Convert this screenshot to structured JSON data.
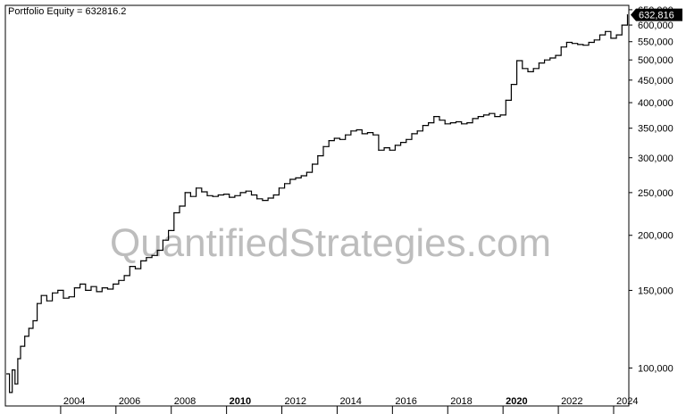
{
  "chart_data": {
    "type": "line",
    "title": "Portfolio Equity = 632816.2",
    "watermark": "QuantifiedStrategies.com",
    "last_value_label": "632,816",
    "y_scale": "log",
    "ylim": [
      82000,
      665000
    ],
    "xlim": [
      2002.0,
      2024.55
    ],
    "x_ticks": [
      {
        "label": "2004",
        "value": 2004,
        "bold": false
      },
      {
        "label": "2006",
        "value": 2006,
        "bold": false
      },
      {
        "label": "2008",
        "value": 2008,
        "bold": false
      },
      {
        "label": "2010",
        "value": 2010,
        "bold": true
      },
      {
        "label": "2012",
        "value": 2012,
        "bold": false
      },
      {
        "label": "2014",
        "value": 2014,
        "bold": false
      },
      {
        "label": "2016",
        "value": 2016,
        "bold": false
      },
      {
        "label": "2018",
        "value": 2018,
        "bold": false
      },
      {
        "label": "2020",
        "value": 2020,
        "bold": true
      },
      {
        "label": "2022",
        "value": 2022,
        "bold": false
      },
      {
        "label": "2024",
        "value": 2024,
        "bold": false
      }
    ],
    "y_ticks": [
      {
        "label": "100,000",
        "value": 100000
      },
      {
        "label": "150,000",
        "value": 150000
      },
      {
        "label": "200,000",
        "value": 200000
      },
      {
        "label": "250,000",
        "value": 250000
      },
      {
        "label": "300,000",
        "value": 300000
      },
      {
        "label": "350,000",
        "value": 350000
      },
      {
        "label": "400,000",
        "value": 400000
      },
      {
        "label": "450,000",
        "value": 450000
      },
      {
        "label": "500,000",
        "value": 500000
      },
      {
        "label": "550,000",
        "value": 550000
      },
      {
        "label": "600,000",
        "value": 600000
      },
      {
        "label": "650,000",
        "value": 650000
      }
    ],
    "colors": {
      "line": "#000000",
      "frame": "#000000",
      "watermark": "#bdbdbd",
      "label_bg": "#000000"
    },
    "series": [
      {
        "x": [
          2002.05,
          2002.15,
          2002.25,
          2002.35,
          2002.45,
          2002.55,
          2002.7,
          2002.85,
          2003.0,
          2003.15,
          2003.3,
          2003.5,
          2003.7,
          2003.9,
          2004.1,
          2004.3,
          2004.5,
          2004.7,
          2004.9,
          2005.1,
          2005.3,
          2005.5,
          2005.7,
          2005.9,
          2006.1,
          2006.3,
          2006.5,
          2006.7,
          2006.9,
          2007.1,
          2007.3,
          2007.5,
          2007.7,
          2007.9,
          2008.1,
          2008.3,
          2008.5,
          2008.7,
          2008.9,
          2009.1,
          2009.3,
          2009.5,
          2009.7,
          2009.9,
          2010.1,
          2010.3,
          2010.5,
          2010.7,
          2010.9,
          2011.1,
          2011.3,
          2011.5,
          2011.7,
          2011.9,
          2012.1,
          2012.3,
          2012.5,
          2012.7,
          2012.9,
          2013.1,
          2013.3,
          2013.5,
          2013.7,
          2013.9,
          2014.1,
          2014.3,
          2014.5,
          2014.7,
          2014.9,
          2015.1,
          2015.3,
          2015.5,
          2015.7,
          2015.9,
          2016.1,
          2016.3,
          2016.5,
          2016.7,
          2016.9,
          2017.1,
          2017.3,
          2017.5,
          2017.7,
          2017.9,
          2018.1,
          2018.3,
          2018.5,
          2018.7,
          2018.9,
          2019.1,
          2019.3,
          2019.5,
          2019.7,
          2019.9,
          2020.1,
          2020.3,
          2020.5,
          2020.7,
          2020.9,
          2021.1,
          2021.3,
          2021.5,
          2021.7,
          2021.9,
          2022.1,
          2022.3,
          2022.5,
          2022.7,
          2022.9,
          2023.1,
          2023.3,
          2023.5,
          2023.7,
          2023.9,
          2024.1,
          2024.3,
          2024.5
        ],
        "values": [
          97000,
          88000,
          99000,
          92000,
          105000,
          112000,
          118000,
          123000,
          128000,
          140000,
          146000,
          142000,
          148000,
          150000,
          144000,
          145000,
          152000,
          155000,
          150000,
          153000,
          149000,
          152000,
          151000,
          155000,
          158000,
          162000,
          170000,
          168000,
          175000,
          178000,
          180000,
          185000,
          195000,
          205000,
          225000,
          233000,
          250000,
          245000,
          256000,
          251000,
          246000,
          245000,
          247000,
          248000,
          244000,
          246000,
          250000,
          252000,
          247000,
          242000,
          240000,
          243000,
          247000,
          256000,
          262000,
          268000,
          270000,
          273000,
          278000,
          290000,
          303000,
          318000,
          328000,
          332000,
          330000,
          338000,
          345000,
          347000,
          340000,
          342000,
          338000,
          312000,
          316000,
          312000,
          320000,
          325000,
          330000,
          340000,
          345000,
          355000,
          360000,
          372000,
          365000,
          358000,
          360000,
          362000,
          358000,
          360000,
          368000,
          372000,
          375000,
          378000,
          372000,
          375000,
          405000,
          440000,
          498000,
          478000,
          470000,
          478000,
          492000,
          500000,
          505000,
          512000,
          535000,
          548000,
          545000,
          542000,
          540000,
          548000,
          555000,
          570000,
          580000,
          560000,
          570000,
          600000,
          632816
        ]
      }
    ]
  }
}
